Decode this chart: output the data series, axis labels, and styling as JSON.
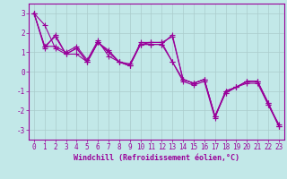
{
  "xlabel": "Windchill (Refroidissement éolien,°C)",
  "bg_color": "#c2e8e8",
  "line_color": "#990099",
  "grid_color": "#aacccc",
  "xlim": [
    -0.5,
    23.5
  ],
  "ylim": [
    -3.5,
    3.5
  ],
  "yticks": [
    -3,
    -2,
    -1,
    0,
    1,
    2,
    3
  ],
  "xticks": [
    0,
    1,
    2,
    3,
    4,
    5,
    6,
    7,
    8,
    9,
    10,
    11,
    12,
    13,
    14,
    15,
    16,
    17,
    18,
    19,
    20,
    21,
    22,
    23
  ],
  "lines": [
    [
      3.0,
      2.4,
      1.2,
      0.9,
      0.9,
      0.5,
      1.5,
      1.1,
      0.5,
      0.4,
      1.4,
      1.4,
      1.4,
      1.9,
      -0.4,
      -0.6,
      -0.4,
      -2.3,
      -1.1,
      -0.8,
      -0.5,
      -0.5,
      -1.6,
      -2.8
    ],
    [
      3.0,
      1.3,
      1.3,
      1.0,
      1.3,
      0.6,
      1.6,
      0.8,
      0.5,
      0.3,
      1.5,
      1.5,
      1.5,
      0.5,
      -0.5,
      -0.7,
      -0.5,
      -2.4,
      -1.0,
      -0.8,
      -0.6,
      -0.6,
      -1.7,
      -2.7
    ],
    [
      3.0,
      1.3,
      1.8,
      0.9,
      1.2,
      0.5,
      1.5,
      1.0,
      0.5,
      0.3,
      1.4,
      1.4,
      1.4,
      0.5,
      -0.4,
      -0.6,
      -0.4,
      -2.3,
      -1.0,
      -0.8,
      -0.5,
      -0.5,
      -1.6,
      -2.8
    ],
    [
      3.0,
      1.2,
      1.9,
      0.9,
      1.2,
      0.5,
      1.5,
      1.0,
      0.5,
      0.3,
      1.4,
      1.5,
      1.5,
      1.8,
      -0.4,
      -0.6,
      -0.4,
      -2.3,
      -1.1,
      -0.8,
      -0.5,
      -0.5,
      -1.7,
      -2.8
    ]
  ],
  "marker": "+",
  "markersize": 4,
  "linewidth": 0.8,
  "label_fontsize": 6,
  "tick_fontsize": 5.5
}
